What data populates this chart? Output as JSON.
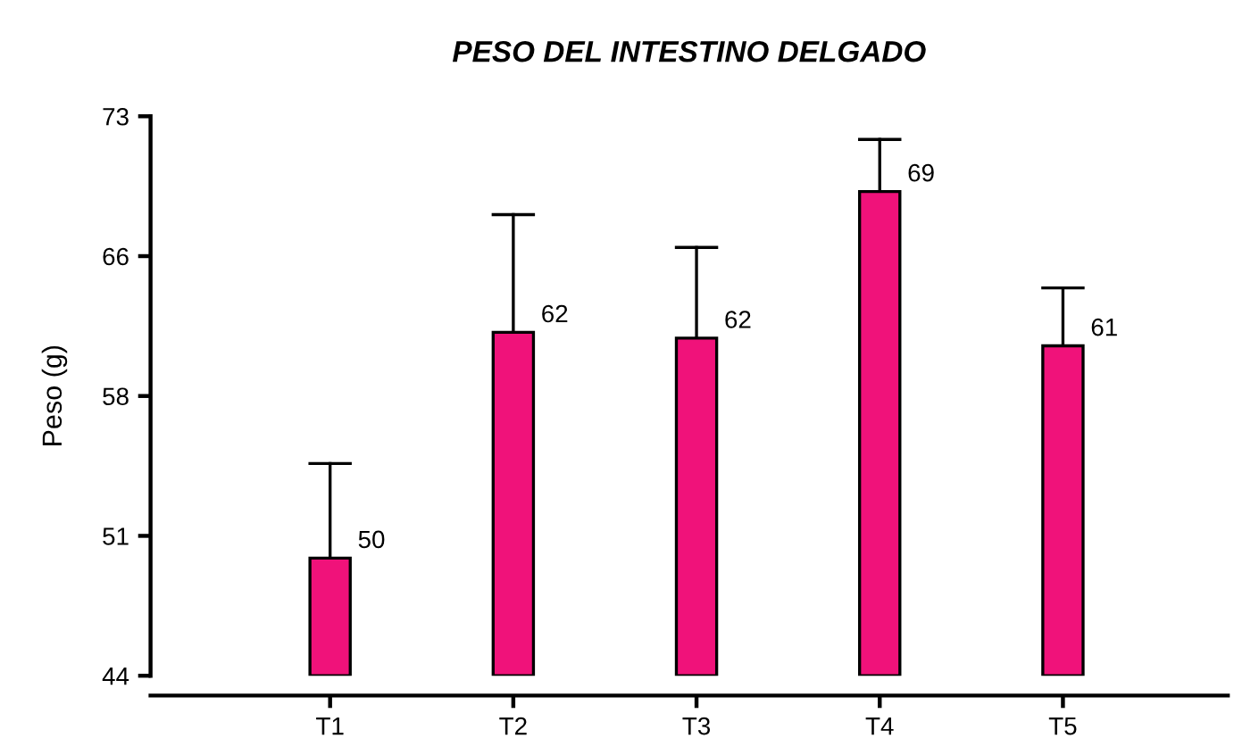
{
  "chart_data": {
    "type": "bar",
    "title": "PESO DEL INTESTINO DELGADO",
    "ylabel": "Peso (g)",
    "categories": [
      "T1",
      "T2",
      "T3",
      "T4",
      "T5"
    ],
    "values": [
      50.1,
      61.8,
      61.5,
      69.1,
      61.1
    ],
    "value_labels": [
      "50",
      "62",
      "62",
      "69",
      "61"
    ],
    "errors": [
      4.9,
      6.1,
      4.7,
      2.7,
      3.0
    ],
    "color": "#f0127a",
    "ylim": [
      44,
      73
    ],
    "yticks": [
      44,
      {
        "value": 51.25,
        "label": "51"
      },
      {
        "value": 58.5,
        "label": "58"
      },
      {
        "value": 65.75,
        "label": "66"
      },
      73
    ],
    "grid": false,
    "legend": false
  }
}
